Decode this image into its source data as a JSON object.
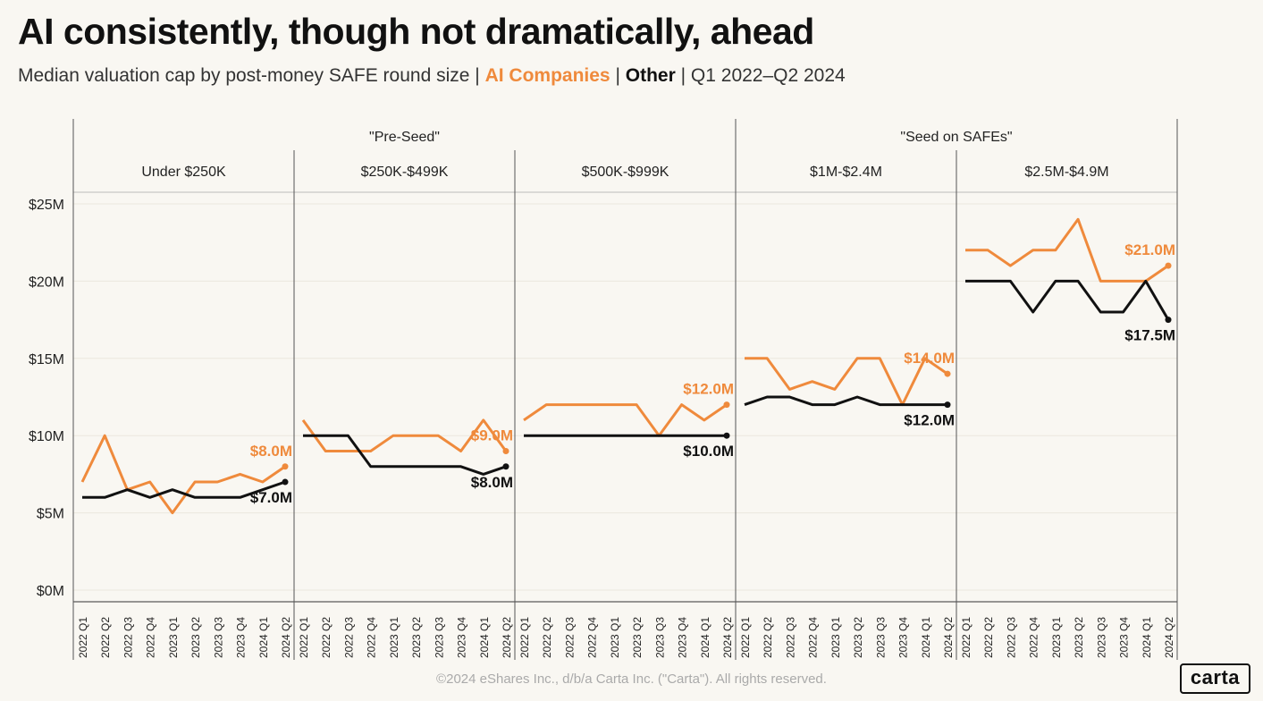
{
  "title": "AI consistently, though not dramatically, ahead",
  "subtitle": {
    "prefix": "Median valuation cap by post-money SAFE round size |",
    "ai_label": "AI Companies",
    "sep": "|",
    "other_label": "Other",
    "suffix": "| Q1 2022–Q2 2024"
  },
  "footer": "©2024 eShares Inc., d/b/a Carta Inc. (\"Carta\"). All rights reserved.",
  "logo": "carta",
  "colors": {
    "ai": "#ef8a3c",
    "other": "#111111",
    "grid": "#ebe7de",
    "divider": "#555555",
    "background": "#f9f7f2"
  },
  "chart_data": {
    "type": "line",
    "group_headers": [
      {
        "label": "\"Pre-Seed\"",
        "panels": [
          0,
          2
        ]
      },
      {
        "label": "\"Seed on SAFEs\"",
        "panels": [
          3,
          4
        ]
      }
    ],
    "x": [
      "2022 Q1",
      "2022 Q2",
      "2022 Q3",
      "2022 Q4",
      "2023 Q1",
      "2023 Q2",
      "2023 Q3",
      "2023 Q4",
      "2024 Q1",
      "2024 Q2"
    ],
    "y_ticks": [
      "$0M",
      "$5M",
      "$10M",
      "$15M",
      "$20M",
      "$25M"
    ],
    "y_tick_values": [
      0,
      5,
      10,
      15,
      20,
      25
    ],
    "ylim": [
      0,
      25
    ],
    "grid": true,
    "panels": [
      {
        "label": "Under $250K",
        "ai": [
          7,
          10,
          6.5,
          7,
          5,
          7,
          7,
          7.5,
          7,
          8
        ],
        "other": [
          6,
          6,
          6.5,
          6,
          6.5,
          6,
          6,
          6,
          6.5,
          7
        ],
        "ai_end_label": "$8.0M",
        "other_end_label": "$7.0M"
      },
      {
        "label": "$250K-$499K",
        "ai": [
          11,
          9,
          9,
          9,
          10,
          10,
          10,
          9,
          11,
          9
        ],
        "other": [
          10,
          10,
          10,
          8,
          8,
          8,
          8,
          8,
          7.5,
          8
        ],
        "ai_end_label": "$9.0M",
        "other_end_label": "$8.0M"
      },
      {
        "label": "$500K-$999K",
        "ai": [
          11,
          12,
          12,
          12,
          12,
          12,
          10,
          12,
          11,
          12
        ],
        "other": [
          10,
          10,
          10,
          10,
          10,
          10,
          10,
          10,
          10,
          10
        ],
        "ai_end_label": "$12.0M",
        "other_end_label": "$10.0M"
      },
      {
        "label": "$1M-$2.4M",
        "ai": [
          15,
          15,
          13,
          13.5,
          13,
          15,
          15,
          12,
          15,
          14
        ],
        "other": [
          12,
          12.5,
          12.5,
          12,
          12,
          12.5,
          12,
          12,
          12,
          12
        ],
        "ai_end_label": "$14.0M",
        "other_end_label": "$12.0M"
      },
      {
        "label": "$2.5M-$4.9M",
        "ai": [
          22,
          22,
          21,
          22,
          22,
          24,
          20,
          20,
          20,
          21
        ],
        "other": [
          20,
          20,
          20,
          18,
          20,
          20,
          18,
          18,
          20,
          17.5
        ],
        "ai_end_label": "$21.0M",
        "other_end_label": "$17.5M"
      }
    ]
  }
}
